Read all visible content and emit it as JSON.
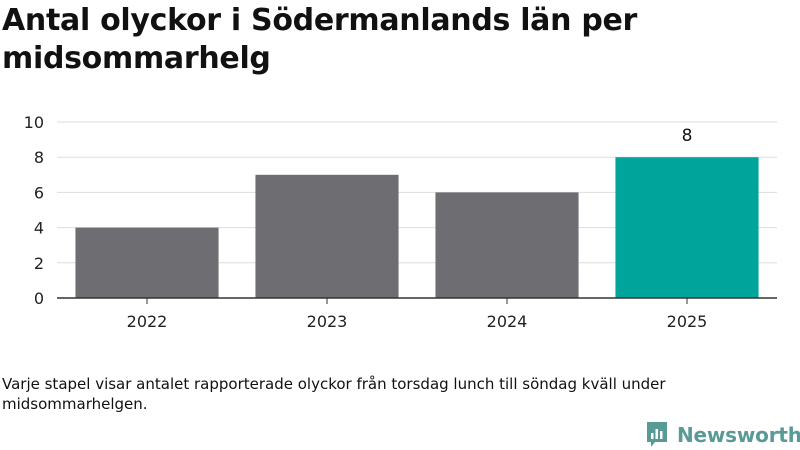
{
  "header": {
    "title": "Antal olyckor i Södermanlands län per midsommarhelg"
  },
  "chart_data": {
    "type": "bar",
    "categories": [
      "2022",
      "2023",
      "2024",
      "2025"
    ],
    "values": [
      4,
      7,
      6,
      8
    ],
    "highlight_index": 3,
    "data_labels": [
      null,
      null,
      null,
      "8"
    ],
    "title": "Antal olyckor i Södermanlands län per midsommarhelg",
    "xlabel": "",
    "ylabel": "",
    "ylim": [
      0,
      10
    ],
    "yticks": [
      "0",
      "2",
      "4",
      "6",
      "8",
      "10"
    ],
    "grid": true,
    "legend": "none",
    "colors": {
      "default": "#6e6d72",
      "highlight": "#00a49a",
      "grid": "#dddddd",
      "axis": "#333333"
    }
  },
  "footer": {
    "caption": "Varje stapel visar antalet rapporterade olyckor från torsdag lunch till söndag kväll under midsommarhelgen.",
    "brand_name": "Newsworthy",
    "brand_icon": "bar-chart-speech-bubble-icon",
    "brand_color": "#5a9a96"
  }
}
